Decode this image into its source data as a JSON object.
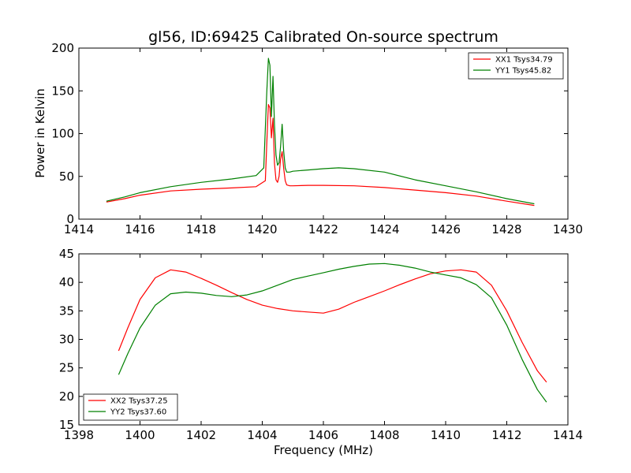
{
  "chart_data": [
    {
      "type": "line",
      "title": "gl56, ID:69425 Calibrated On-source spectrum",
      "xlabel": "",
      "ylabel": "Power in Kelvin",
      "xlim": [
        1414,
        1430
      ],
      "ylim": [
        0,
        200
      ],
      "xticks": [
        "1414",
        "1416",
        "1418",
        "1420",
        "1422",
        "1424",
        "1426",
        "1428",
        "1430"
      ],
      "yticks": [
        "0",
        "50",
        "100",
        "150",
        "200"
      ],
      "legend_position": "top-right",
      "series": [
        {
          "name": "XX1 Tsys34.79",
          "color": "#ff0000",
          "x": [
            1414.9,
            1415.5,
            1416.0,
            1417.0,
            1418.0,
            1419.0,
            1419.8,
            1420.1,
            1420.15,
            1420.2,
            1420.25,
            1420.3,
            1420.35,
            1420.4,
            1420.45,
            1420.5,
            1420.55,
            1420.6,
            1420.65,
            1420.7,
            1420.75,
            1420.8,
            1420.9,
            1421.0,
            1421.5,
            1422.0,
            1423.0,
            1424.0,
            1425.0,
            1426.0,
            1427.0,
            1428.0,
            1428.9
          ],
          "y": [
            20,
            24,
            28,
            33,
            35,
            36.5,
            38,
            45,
            90,
            134,
            130,
            95,
            118,
            65,
            46,
            43,
            50,
            70,
            79,
            60,
            45,
            40,
            39,
            39,
            39.5,
            39.5,
            39,
            37,
            34,
            31,
            27,
            21,
            16
          ]
        },
        {
          "name": "YY1 Tsys45.82",
          "color": "#008000",
          "x": [
            1414.9,
            1415.5,
            1416.0,
            1417.0,
            1418.0,
            1419.0,
            1419.8,
            1420.05,
            1420.15,
            1420.2,
            1420.25,
            1420.3,
            1420.35,
            1420.4,
            1420.45,
            1420.5,
            1420.55,
            1420.6,
            1420.65,
            1420.7,
            1420.75,
            1420.8,
            1420.9,
            1421.0,
            1421.5,
            1422.0,
            1422.5,
            1423.0,
            1424.0,
            1425.0,
            1426.0,
            1427.0,
            1428.0,
            1428.9
          ],
          "y": [
            21,
            26,
            31,
            38,
            43,
            47,
            51,
            60,
            150,
            188,
            180,
            120,
            167,
            110,
            75,
            63,
            66,
            85,
            111,
            80,
            60,
            55,
            55,
            56,
            57.5,
            59,
            60,
            59,
            55,
            46,
            39,
            32,
            24,
            18
          ]
        }
      ]
    },
    {
      "type": "line",
      "title": "",
      "xlabel": "Frequency (MHz)",
      "ylabel": "",
      "xlim": [
        1398,
        1414
      ],
      "ylim": [
        15,
        45
      ],
      "xticks": [
        "1398",
        "1400",
        "1402",
        "1404",
        "1406",
        "1408",
        "1410",
        "1412",
        "1414"
      ],
      "yticks": [
        "15",
        "20",
        "25",
        "30",
        "35",
        "40",
        "45"
      ],
      "legend_position": "bottom-left",
      "series": [
        {
          "name": "XX2 Tsys37.25",
          "color": "#ff0000",
          "x": [
            1399.3,
            1399.6,
            1400.0,
            1400.5,
            1401.0,
            1401.5,
            1402.0,
            1402.5,
            1403.0,
            1403.5,
            1404.0,
            1404.5,
            1405.0,
            1405.5,
            1406.0,
            1406.5,
            1407.0,
            1407.5,
            1408.0,
            1408.5,
            1409.0,
            1409.5,
            1410.0,
            1410.5,
            1411.0,
            1411.5,
            1412.0,
            1412.5,
            1413.0,
            1413.3
          ],
          "y": [
            28,
            32,
            37,
            40.8,
            42.2,
            41.8,
            40.7,
            39.5,
            38.2,
            37,
            36,
            35.4,
            35,
            34.8,
            34.6,
            35.3,
            36.5,
            37.5,
            38.5,
            39.6,
            40.6,
            41.5,
            42,
            42.2,
            41.8,
            39.5,
            35,
            29.5,
            24.5,
            22.5
          ]
        },
        {
          "name": "YY2 Tsys37.60",
          "color": "#008000",
          "x": [
            1399.3,
            1399.6,
            1400.0,
            1400.5,
            1401.0,
            1401.5,
            1402.0,
            1402.5,
            1403.0,
            1403.5,
            1404.0,
            1404.5,
            1405.0,
            1405.5,
            1406.0,
            1406.5,
            1407.0,
            1407.5,
            1408.0,
            1408.5,
            1409.0,
            1409.5,
            1410.0,
            1410.5,
            1411.0,
            1411.5,
            1412.0,
            1412.5,
            1413.0,
            1413.3
          ],
          "y": [
            23.8,
            27.5,
            32,
            36,
            38,
            38.3,
            38.1,
            37.7,
            37.5,
            37.8,
            38.5,
            39.5,
            40.5,
            41.1,
            41.7,
            42.3,
            42.8,
            43.2,
            43.3,
            43,
            42.5,
            41.8,
            41.3,
            40.8,
            39.6,
            37.3,
            32.5,
            26.5,
            21.2,
            19
          ]
        }
      ]
    }
  ]
}
